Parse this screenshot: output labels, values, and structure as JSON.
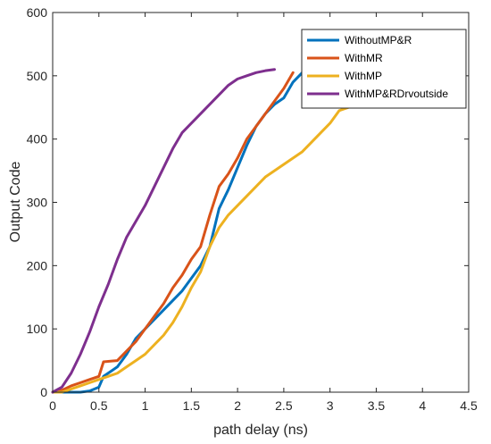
{
  "chart_data": {
    "type": "line",
    "title": "",
    "xlabel": "path delay (ns)",
    "ylabel": "Output Code",
    "xlim": [
      0,
      4.5
    ],
    "ylim": [
      0,
      600
    ],
    "xticks": [
      "0",
      "0.5",
      "1",
      "1.5",
      "2",
      "2.5",
      "3",
      "3.5",
      "4",
      "4.5"
    ],
    "yticks": [
      "0",
      "100",
      "200",
      "300",
      "400",
      "500",
      "600"
    ],
    "grid": false,
    "legend_position": "top-right",
    "series": [
      {
        "name": "WithoutMP&R",
        "color": "#0072BD",
        "points": [
          [
            0,
            0
          ],
          [
            0.1,
            0
          ],
          [
            0.2,
            0
          ],
          [
            0.3,
            0
          ],
          [
            0.4,
            2
          ],
          [
            0.5,
            8
          ],
          [
            0.55,
            25
          ],
          [
            0.6,
            30
          ],
          [
            0.7,
            40
          ],
          [
            0.8,
            60
          ],
          [
            0.9,
            85
          ],
          [
            1.0,
            100
          ],
          [
            1.1,
            115
          ],
          [
            1.2,
            130
          ],
          [
            1.3,
            145
          ],
          [
            1.4,
            160
          ],
          [
            1.5,
            180
          ],
          [
            1.6,
            200
          ],
          [
            1.7,
            230
          ],
          [
            1.8,
            290
          ],
          [
            1.9,
            320
          ],
          [
            2.0,
            355
          ],
          [
            2.1,
            390
          ],
          [
            2.2,
            420
          ],
          [
            2.3,
            440
          ],
          [
            2.4,
            455
          ],
          [
            2.5,
            465
          ],
          [
            2.6,
            490
          ],
          [
            2.7,
            505
          ]
        ]
      },
      {
        "name": "WithMR",
        "color": "#D95319",
        "points": [
          [
            0,
            0
          ],
          [
            0.1,
            3
          ],
          [
            0.2,
            10
          ],
          [
            0.3,
            15
          ],
          [
            0.4,
            20
          ],
          [
            0.5,
            25
          ],
          [
            0.55,
            48
          ],
          [
            0.7,
            50
          ],
          [
            0.8,
            65
          ],
          [
            0.9,
            80
          ],
          [
            1.0,
            100
          ],
          [
            1.1,
            120
          ],
          [
            1.2,
            140
          ],
          [
            1.3,
            165
          ],
          [
            1.4,
            185
          ],
          [
            1.5,
            210
          ],
          [
            1.6,
            230
          ],
          [
            1.7,
            280
          ],
          [
            1.8,
            325
          ],
          [
            1.9,
            345
          ],
          [
            2.0,
            370
          ],
          [
            2.1,
            400
          ],
          [
            2.2,
            420
          ],
          [
            2.3,
            440
          ],
          [
            2.4,
            460
          ],
          [
            2.5,
            480
          ],
          [
            2.6,
            505
          ]
        ]
      },
      {
        "name": "WithMP",
        "color": "#EDB120",
        "points": [
          [
            0,
            0
          ],
          [
            0.1,
            0
          ],
          [
            0.2,
            5
          ],
          [
            0.3,
            10
          ],
          [
            0.4,
            15
          ],
          [
            0.5,
            20
          ],
          [
            0.6,
            25
          ],
          [
            0.7,
            30
          ],
          [
            0.8,
            40
          ],
          [
            0.9,
            50
          ],
          [
            1.0,
            60
          ],
          [
            1.1,
            75
          ],
          [
            1.2,
            90
          ],
          [
            1.3,
            110
          ],
          [
            1.4,
            135
          ],
          [
            1.5,
            165
          ],
          [
            1.6,
            190
          ],
          [
            1.7,
            230
          ],
          [
            1.8,
            260
          ],
          [
            1.9,
            280
          ],
          [
            2.0,
            295
          ],
          [
            2.1,
            310
          ],
          [
            2.2,
            325
          ],
          [
            2.3,
            340
          ],
          [
            2.5,
            360
          ],
          [
            2.7,
            380
          ],
          [
            2.9,
            410
          ],
          [
            3.0,
            425
          ],
          [
            3.1,
            445
          ],
          [
            3.2,
            450
          ],
          [
            3.3,
            460
          ],
          [
            3.4,
            470
          ]
        ]
      },
      {
        "name": "WithMP&RDrvoutside",
        "color": "#7E2F8E",
        "points": [
          [
            0,
            0
          ],
          [
            0.1,
            8
          ],
          [
            0.2,
            30
          ],
          [
            0.3,
            60
          ],
          [
            0.4,
            95
          ],
          [
            0.5,
            135
          ],
          [
            0.6,
            170
          ],
          [
            0.7,
            210
          ],
          [
            0.8,
            245
          ],
          [
            0.9,
            270
          ],
          [
            1.0,
            295
          ],
          [
            1.1,
            325
          ],
          [
            1.2,
            355
          ],
          [
            1.3,
            385
          ],
          [
            1.4,
            410
          ],
          [
            1.5,
            425
          ],
          [
            1.6,
            440
          ],
          [
            1.7,
            455
          ],
          [
            1.8,
            470
          ],
          [
            1.9,
            485
          ],
          [
            2.0,
            495
          ],
          [
            2.1,
            500
          ],
          [
            2.2,
            505
          ],
          [
            2.3,
            508
          ],
          [
            2.4,
            510
          ]
        ]
      }
    ]
  }
}
